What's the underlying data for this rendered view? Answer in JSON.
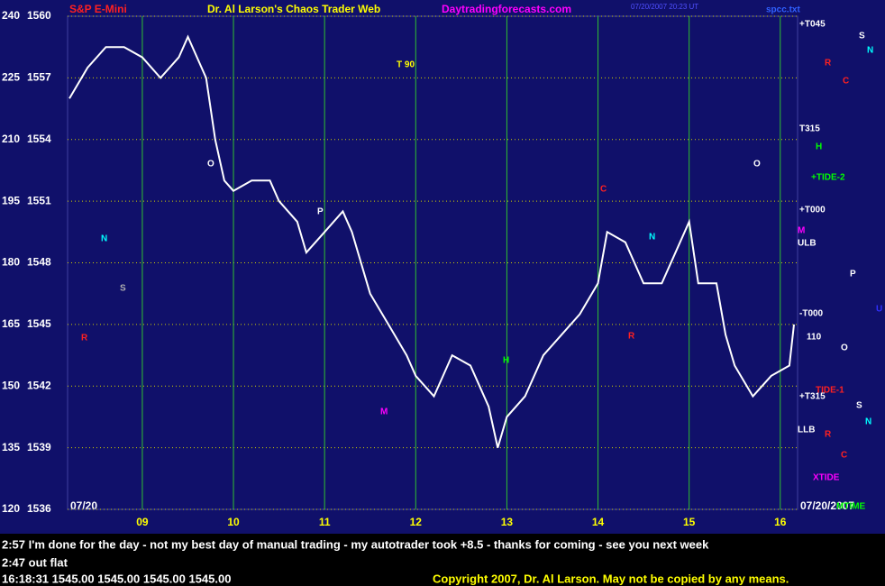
{
  "chart_data": {
    "type": "line",
    "title": "Dr. Al Larson's Chaos Trader Web",
    "subtitle": "S&P E-Mini",
    "site": "Daytradingforecasts.com",
    "timestamp": "07/20/2007 20:23 UT",
    "file": "spcc.txt",
    "start_date": "07/20",
    "end_date": "07/20/2007",
    "x": [
      8.2,
      8.4,
      8.6,
      8.8,
      9.0,
      9.2,
      9.4,
      9.5,
      9.7,
      9.8,
      9.9,
      10.0,
      10.2,
      10.4,
      10.5,
      10.7,
      10.8,
      11.0,
      11.2,
      11.3,
      11.5,
      11.7,
      11.9,
      12.0,
      12.2,
      12.4,
      12.6,
      12.8,
      12.9,
      13.0,
      13.2,
      13.4,
      13.6,
      13.8,
      14.0,
      14.1,
      14.3,
      14.5,
      14.7,
      14.9,
      15.0,
      15.1,
      15.3,
      15.4,
      15.5,
      15.7,
      15.9,
      16.1,
      16.15
    ],
    "series": [
      {
        "name": "price",
        "color": "#ffffff",
        "values": [
          1556,
          1557.5,
          1558.5,
          1558.5,
          1558,
          1557,
          1558,
          1559,
          1557,
          1554,
          1552,
          1551.5,
          1552,
          1552,
          1551,
          1550,
          1548.5,
          1549.5,
          1550.5,
          1549.5,
          1546.5,
          1545,
          1543.5,
          1542.5,
          1541.5,
          1543.5,
          1543,
          1541,
          1539,
          1540.5,
          1541.5,
          1543.5,
          1544.5,
          1545.5,
          1547,
          1549.5,
          1549,
          1547,
          1547,
          1549,
          1550,
          1547,
          1547,
          1544.5,
          1543,
          1541.5,
          1542.5,
          1543,
          1545
        ]
      }
    ],
    "xlim": [
      8.18,
      16.19
    ],
    "xticks": [
      {
        "value": 9,
        "label": "09"
      },
      10,
      11,
      12,
      13,
      14,
      15,
      16
    ],
    "ylim": [
      1536,
      1560
    ],
    "yticks": [
      1536,
      1539,
      1542,
      1545,
      1548,
      1551,
      1554,
      1557,
      1560
    ],
    "y2lim": [
      120,
      240
    ],
    "y2ticks": [
      120,
      135,
      150,
      165,
      180,
      195,
      210,
      225,
      240
    ],
    "grid": true,
    "annotations": [
      {
        "text": "T 90",
        "color": "#ffff00"
      },
      {
        "text": "+T045",
        "color": "#ffffff"
      },
      {
        "text": "T315",
        "color": "#ffffff"
      },
      {
        "text": "H",
        "color": "#00ff00"
      },
      {
        "text": "+TIDE-2",
        "color": "#00ff00"
      },
      {
        "text": "+T000",
        "color": "#ffffff"
      },
      {
        "text": "M",
        "color": "#ff00ff"
      },
      {
        "text": "ULB",
        "color": "#ffffff"
      },
      {
        "text": "-T000",
        "color": "#ffffff"
      },
      {
        "text": "110",
        "color": "#ffffff"
      },
      {
        "text": "TIDE-1",
        "color": "#ff2020"
      },
      {
        "text": "+T315",
        "color": "#ffffff"
      },
      {
        "text": "LLB",
        "color": "#ffffff"
      },
      {
        "text": "XTIDE",
        "color": "#ff00ff"
      },
      {
        "text": "MTIME",
        "color": "#00ff00"
      },
      {
        "text": "S",
        "color": "#ffffff"
      },
      {
        "text": "N",
        "color": "#00ffff"
      },
      {
        "text": "R",
        "color": "#ff2020"
      },
      {
        "text": "C",
        "color": "#ff2020"
      },
      {
        "text": "P",
        "color": "#ffffff"
      },
      {
        "text": "U",
        "color": "#3030ff"
      },
      {
        "text": "O",
        "color": "#ffffff"
      },
      {
        "text": "S",
        "color": "#ffffff"
      },
      {
        "text": "N",
        "color": "#00ffff"
      },
      {
        "text": "R",
        "color": "#ff2020"
      },
      {
        "text": "C",
        "color": "#ff2020"
      },
      {
        "text": "O",
        "color": "#ffffff"
      },
      {
        "text": "O",
        "color": "#ffffff"
      },
      {
        "text": "P",
        "color": "#ffffff"
      },
      {
        "text": "N",
        "color": "#00ffff"
      },
      {
        "text": "S",
        "color": "#b0b0b0"
      },
      {
        "text": "R",
        "color": "#ff2020"
      },
      {
        "text": "C",
        "color": "#ff2020"
      },
      {
        "text": "N",
        "color": "#00ffff"
      },
      {
        "text": "R",
        "color": "#ff2020"
      },
      {
        "text": "H",
        "color": "#00ff00"
      },
      {
        "text": "M",
        "color": "#ff00ff"
      }
    ],
    "messages": [
      "2:57 I'm done for the day - not my best day of manual trading - my autotrader took +8.5 - thanks for coming - see you next week",
      "2:47 out flat"
    ],
    "quote": "16:18:31  1545.00 1545.00 1545.00 1545.00",
    "copyright": "Copyright 2007, Dr. Al Larson. May not be copied by any means."
  }
}
